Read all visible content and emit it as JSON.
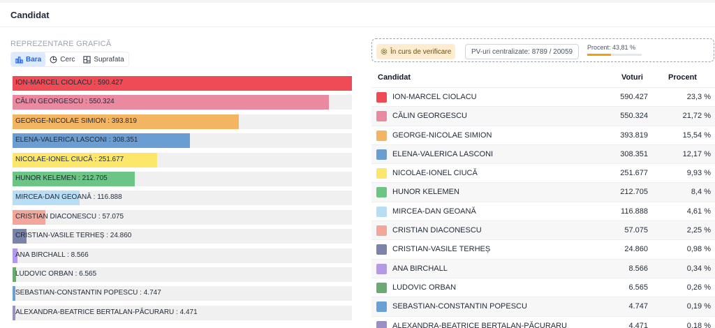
{
  "header": {
    "title": "Candidat"
  },
  "chart_section": {
    "label": "REPREZENTARE GRAFICĂ",
    "tabs": [
      {
        "label": "Bara",
        "icon": "bar-chart-icon",
        "active": true
      },
      {
        "label": "Cerc",
        "icon": "pie-chart-icon",
        "active": false
      },
      {
        "label": "Suprafata",
        "icon": "treemap-icon",
        "active": false
      }
    ]
  },
  "status": {
    "verificare_label": "În curs de verificare",
    "pv_label": "PV-uri centralizate: 8789 / 20059",
    "procent_label": "Procent: 43,81 %",
    "procent_value": 43.81
  },
  "table": {
    "headers": {
      "candidat": "Candidat",
      "voturi": "Voturi",
      "procent": "Procent"
    }
  },
  "candidates": [
    {
      "name": "ION-MARCEL CIOLACU",
      "votes": "590.427",
      "percent": "23,3 %",
      "color": "#ef4b55"
    },
    {
      "name": "CĂLIN GEORGESCU",
      "votes": "550.324",
      "percent": "21,72 %",
      "color": "#e98aa0"
    },
    {
      "name": "GEORGE-NICOLAE SIMION",
      "votes": "393.819",
      "percent": "15,54 %",
      "color": "#f4b563"
    },
    {
      "name": "ELENA-VALERICA LASCONI",
      "votes": "308.351",
      "percent": "12,17 %",
      "color": "#6a9ed3"
    },
    {
      "name": "NICOLAE-IONEL CIUCĂ",
      "votes": "251.677",
      "percent": "9,93 %",
      "color": "#fde76a"
    },
    {
      "name": "HUNOR KELEMEN",
      "votes": "212.705",
      "percent": "8,4 %",
      "color": "#6cc585"
    },
    {
      "name": "MIRCEA-DAN GEOANĂ",
      "votes": "116.888",
      "percent": "4,61 %",
      "color": "#b7def5"
    },
    {
      "name": "CRISTIAN DIACONESCU",
      "votes": "57.075",
      "percent": "2,25 %",
      "color": "#f3a69a"
    },
    {
      "name": "CRISTIAN-VASILE TERHEȘ",
      "votes": "24.860",
      "percent": "0,98 %",
      "color": "#7c83a8"
    },
    {
      "name": "ANA BIRCHALL",
      "votes": "8.566",
      "percent": "0,34 %",
      "color": "#b39ae8"
    },
    {
      "name": "LUDOVIC ORBAN",
      "votes": "6.565",
      "percent": "0,26 %",
      "color": "#6da972"
    },
    {
      "name": "SEBASTIAN-CONSTANTIN POPESCU",
      "votes": "4.747",
      "percent": "0,19 %",
      "color": "#6aa1d2"
    },
    {
      "name": "ALEXANDRA-BEATRICE BERTALAN-PĂCURARU",
      "votes": "4.471",
      "percent": "0,18 %",
      "color": "#9b8fc6"
    }
  ],
  "chart_data": {
    "type": "bar",
    "orientation": "horizontal",
    "categories": [
      "ION-MARCEL CIOLACU",
      "CĂLIN GEORGESCU",
      "GEORGE-NICOLAE SIMION",
      "ELENA-VALERICA LASCONI",
      "NICOLAE-IONEL CIUCĂ",
      "HUNOR KELEMEN",
      "MIRCEA-DAN GEOANĂ",
      "CRISTIAN DIACONESCU",
      "CRISTIAN-VASILE TERHEȘ",
      "ANA BIRCHALL",
      "LUDOVIC ORBAN",
      "SEBASTIAN-CONSTANTIN POPESCU",
      "ALEXANDRA-BEATRICE BERTALAN-PĂCURARU"
    ],
    "values": [
      590427,
      550324,
      393819,
      308351,
      251677,
      212705,
      116888,
      57075,
      24860,
      8566,
      6565,
      4747,
      4471
    ],
    "labels": [
      "ION-MARCEL CIOLACU : 590.427",
      "CĂLIN GEORGESCU : 550.324",
      "GEORGE-NICOLAE SIMION : 393.819",
      "ELENA-VALERICA LASCONI : 308.351",
      "NICOLAE-IONEL CIUCĂ : 251.677",
      "HUNOR KELEMEN : 212.705",
      "MIRCEA-DAN GEOANĂ : 116.888",
      "CRISTIAN DIACONESCU : 57.075",
      "CRISTIAN-VASILE TERHEȘ : 24.860",
      "ANA BIRCHALL : 8.566",
      "LUDOVIC ORBAN : 6.565",
      "SEBASTIAN-CONSTANTIN POPESCU : 4.747",
      "ALEXANDRA-BEATRICE BERTALAN-PĂCURARU : 4.471"
    ],
    "xlim": [
      0,
      590427
    ]
  }
}
